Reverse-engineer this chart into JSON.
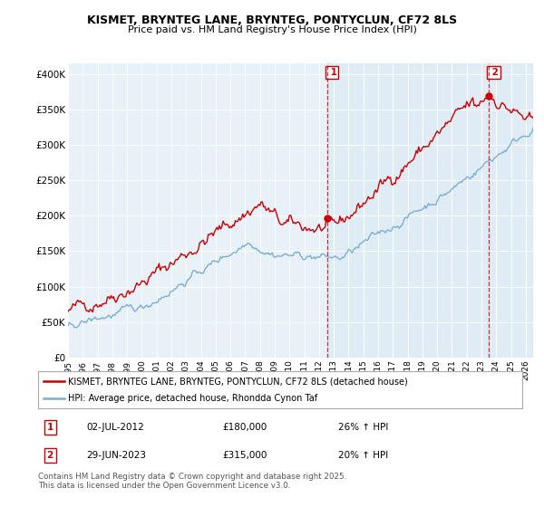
{
  "title1": "KISMET, BRYNTEG LANE, BRYNTEG, PONTYCLUN, CF72 8LS",
  "title2": "Price paid vs. HM Land Registry's House Price Index (HPI)",
  "ylabel_ticks": [
    "£0",
    "£50K",
    "£100K",
    "£150K",
    "£200K",
    "£250K",
    "£300K",
    "£350K",
    "£400K"
  ],
  "ytick_vals": [
    0,
    50000,
    100000,
    150000,
    200000,
    250000,
    300000,
    350000,
    400000
  ],
  "ylim": [
    0,
    415000
  ],
  "xlim_start": 1995.0,
  "xlim_end": 2026.5,
  "xtick_years": [
    1995,
    1996,
    1997,
    1998,
    1999,
    2000,
    2001,
    2002,
    2003,
    2004,
    2005,
    2006,
    2007,
    2008,
    2009,
    2010,
    2011,
    2012,
    2013,
    2014,
    2015,
    2016,
    2017,
    2018,
    2019,
    2020,
    2021,
    2022,
    2023,
    2024,
    2025,
    2026
  ],
  "red_color": "#cc0000",
  "blue_color": "#7ab0d4",
  "shade_color": "#d0e4f0",
  "legend_line1": "KISMET, BRYNTEG LANE, BRYNTEG, PONTYCLUN, CF72 8LS (detached house)",
  "legend_line2": "HPI: Average price, detached house, Rhondda Cynon Taf",
  "ann1_num": "1",
  "ann1_date": "02-JUL-2012",
  "ann1_price": "£180,000",
  "ann1_hpi": "26% ↑ HPI",
  "ann2_num": "2",
  "ann2_date": "29-JUN-2023",
  "ann2_price": "£315,000",
  "ann2_hpi": "20% ↑ HPI",
  "footer": "Contains HM Land Registry data © Crown copyright and database right 2025.\nThis data is licensed under the Open Government Licence v3.0.",
  "bg_color": "#e8f0f8",
  "grid_color": "#ffffff"
}
